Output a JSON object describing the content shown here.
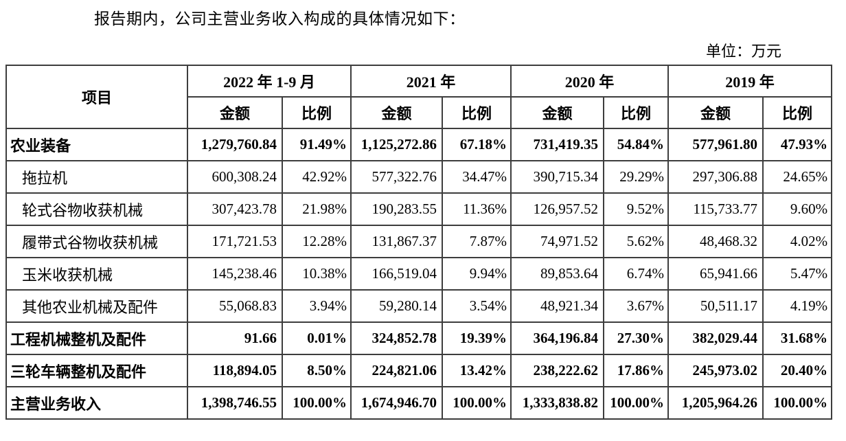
{
  "page": {
    "intro": "报告期内，公司主营业务收入构成的具体情况如下：",
    "unit_label": "单位：万元"
  },
  "table": {
    "item_header": "项目",
    "amount_header": "金额",
    "ratio_header": "比例",
    "col_groups": [
      {
        "label": "2022 年 1-9 月"
      },
      {
        "label": "2021 年"
      },
      {
        "label": "2020 年"
      },
      {
        "label": "2019 年"
      }
    ],
    "rows": [
      {
        "name": "农业装备",
        "bold": true,
        "values": [
          "1,279,760.84",
          "91.49%",
          "1,125,272.86",
          "67.18%",
          "731,419.35",
          "54.84%",
          "577,961.80",
          "47.93%"
        ]
      },
      {
        "name": "拖拉机",
        "bold": false,
        "values": [
          "600,308.24",
          "42.92%",
          "577,322.76",
          "34.47%",
          "390,715.34",
          "29.29%",
          "297,306.88",
          "24.65%"
        ]
      },
      {
        "name": "轮式谷物收获机械",
        "bold": false,
        "values": [
          "307,423.78",
          "21.98%",
          "190,283.55",
          "11.36%",
          "126,957.52",
          "9.52%",
          "115,733.77",
          "9.60%"
        ]
      },
      {
        "name": "履带式谷物收获机械",
        "bold": false,
        "values": [
          "171,721.53",
          "12.28%",
          "131,867.37",
          "7.87%",
          "74,971.52",
          "5.62%",
          "48,468.32",
          "4.02%"
        ]
      },
      {
        "name": "玉米收获机械",
        "bold": false,
        "values": [
          "145,238.46",
          "10.38%",
          "166,519.04",
          "9.94%",
          "89,853.64",
          "6.74%",
          "65,941.66",
          "5.47%"
        ]
      },
      {
        "name": "其他农业机械及配件",
        "bold": false,
        "values": [
          "55,068.83",
          "3.94%",
          "59,280.14",
          "3.54%",
          "48,921.34",
          "3.67%",
          "50,511.17",
          "4.19%"
        ]
      },
      {
        "name": "工程机械整机及配件",
        "bold": true,
        "values": [
          "91.66",
          "0.01%",
          "324,852.78",
          "19.39%",
          "364,196.84",
          "27.30%",
          "382,029.44",
          "31.68%"
        ]
      },
      {
        "name": "三轮车辆整机及配件",
        "bold": true,
        "values": [
          "118,894.05",
          "8.50%",
          "224,821.06",
          "13.42%",
          "238,222.62",
          "17.86%",
          "245,973.02",
          "20.40%"
        ]
      },
      {
        "name": "主营业务收入",
        "bold": true,
        "values": [
          "1,398,746.55",
          "100.00%",
          "1,674,946.70",
          "100.00%",
          "1,333,838.82",
          "100.00%",
          "1,205,964.26",
          "100.00%"
        ]
      }
    ]
  }
}
